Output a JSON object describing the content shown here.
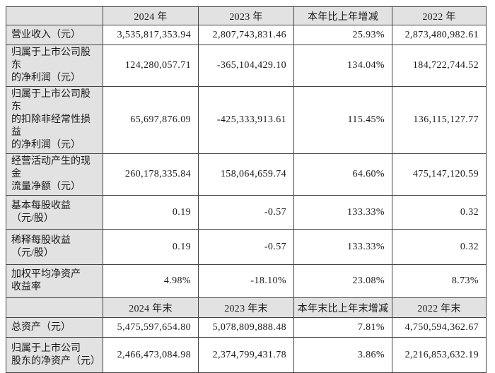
{
  "table": {
    "colors": {
      "header_bg": "#e2e2e2",
      "border": "#444444",
      "text": "#1a1a1a",
      "cell_bg": "#ffffff"
    },
    "section1": {
      "header": {
        "cols": [
          "2024 年",
          "2023 年",
          "本年比上年增减",
          "2022 年"
        ]
      },
      "rows": [
        {
          "label": "营业收入（元）",
          "values": [
            "3,535,817,353.94",
            "2,807,743,831.46",
            "25.93%",
            "2,873,480,982.61"
          ]
        },
        {
          "label": "归属于上市公司股东\n的净利润（元）",
          "values": [
            "124,280,057.71",
            "-365,104,429.10",
            "134.04%",
            "184,722,744.52"
          ]
        },
        {
          "label": "归属于上市公司股东\n的扣除非经常性损益\n的净利润（元）",
          "values": [
            "65,697,876.09",
            "-425,333,913.61",
            "115.45%",
            "136,115,127.77"
          ]
        },
        {
          "label": "经营活动产生的现金\n流量净额（元）",
          "values": [
            "260,178,335.84",
            "158,064,659.74",
            "64.60%",
            "475,147,120.59"
          ]
        },
        {
          "label": "基本每股收益\n（元/股）",
          "values": [
            "0.19",
            "-0.57",
            "133.33%",
            "0.32"
          ]
        },
        {
          "label": "稀释每股收益\n（元/股）",
          "values": [
            "0.19",
            "-0.57",
            "133.33%",
            "0.32"
          ]
        },
        {
          "label": "加权平均净资产\n收益率",
          "values": [
            "4.98%",
            "-18.10%",
            "23.08%",
            "8.73%"
          ]
        }
      ]
    },
    "section2": {
      "header": {
        "cols": [
          "2024 年末",
          "2023 年末",
          "本年末比上年末增减",
          "2022 年末"
        ]
      },
      "rows": [
        {
          "label": "总资产（元）",
          "values": [
            "5,475,597,654.80",
            "5,078,809,888.48",
            "7.81%",
            "4,750,594,362.67"
          ]
        },
        {
          "label": "归属于上市公司\n股东的净资产（元）",
          "values": [
            "2,466,473,084.98",
            "2,374,799,431.78",
            "3.86%",
            "2,216,853,632.19"
          ]
        }
      ]
    }
  }
}
